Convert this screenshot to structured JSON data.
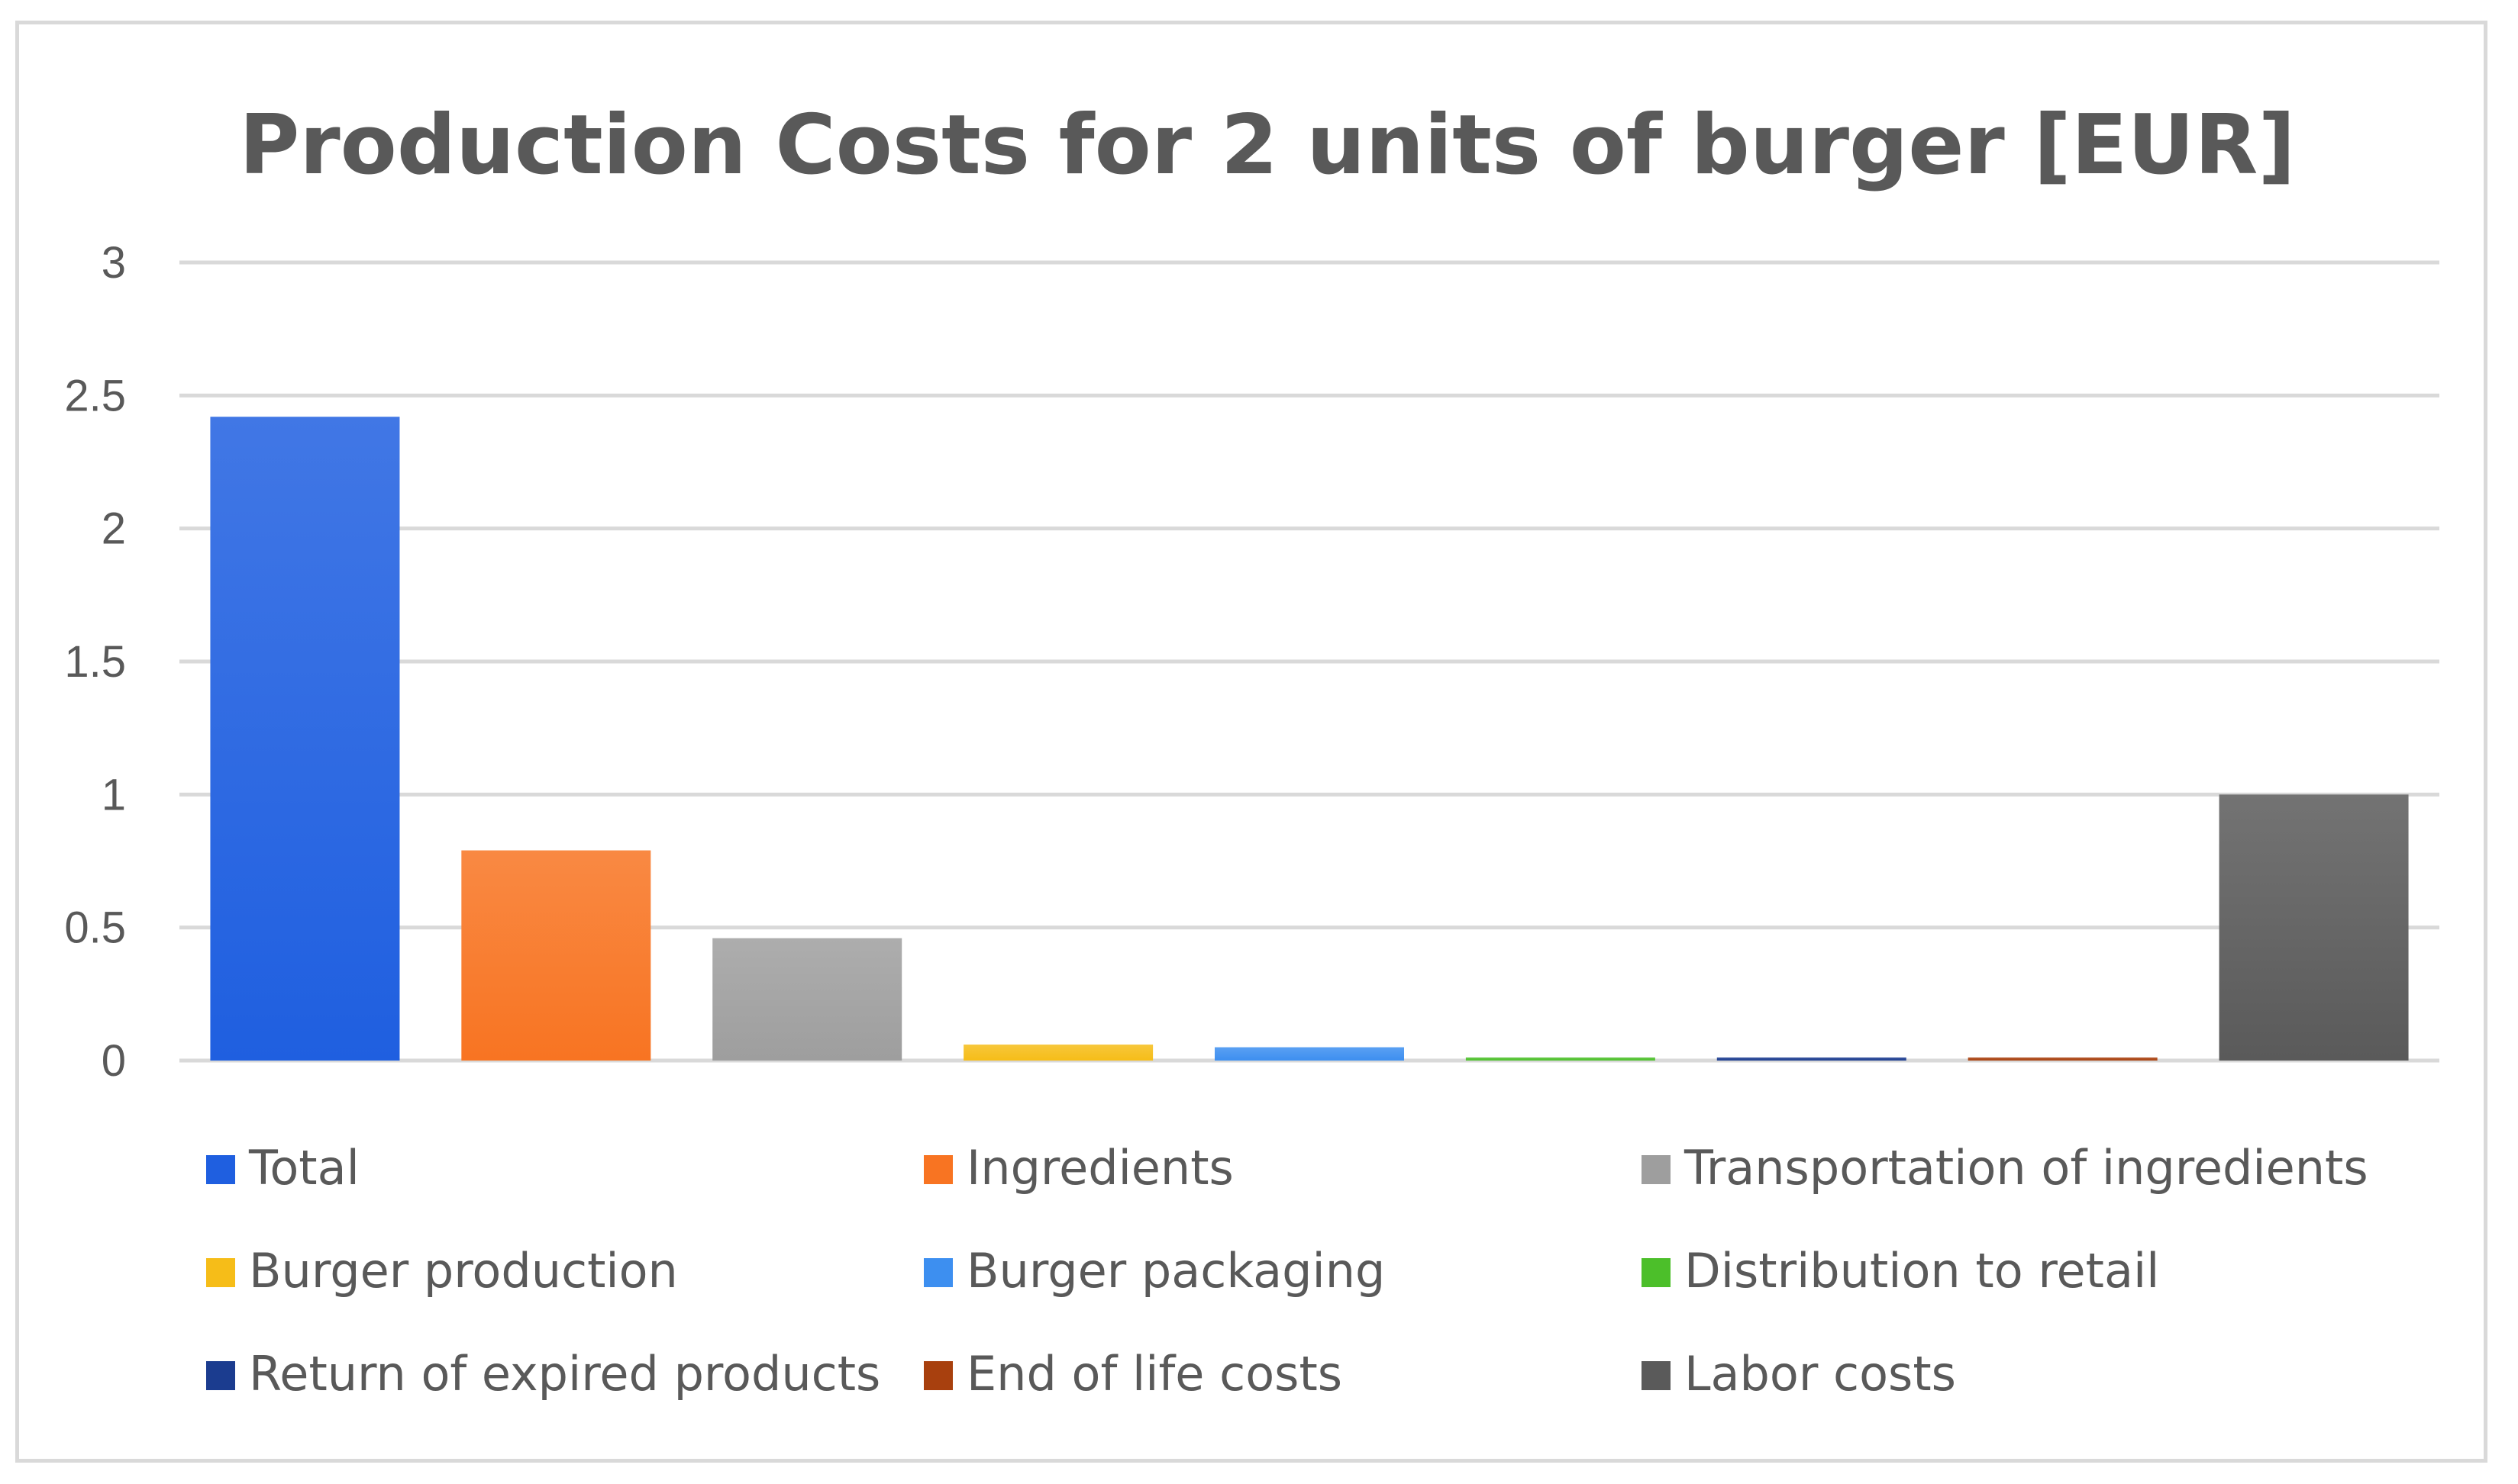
{
  "chart_data": {
    "type": "bar",
    "title": "Production Costs for 2 units of burger [EUR]",
    "xlabel": "",
    "ylabel": "",
    "ylim": [
      0,
      3
    ],
    "yticks": [
      0,
      0.5,
      1,
      1.5,
      2,
      2.5,
      3
    ],
    "ytick_labels": [
      "0",
      "0.5",
      "1",
      "1.5",
      "2",
      "2.5",
      "3"
    ],
    "grid": true,
    "legend_position": "bottom",
    "series": [
      {
        "name": "Total",
        "value": 2.42,
        "color": "#1f5fe0"
      },
      {
        "name": "Ingredients",
        "value": 0.79,
        "color": "#f87422"
      },
      {
        "name": "Transportation of ingredients",
        "value": 0.46,
        "color": "#9e9e9e"
      },
      {
        "name": "Burger production",
        "value": 0.06,
        "color": "#f6bd18"
      },
      {
        "name": "Burger packaging",
        "value": 0.05,
        "color": "#3d8ff0"
      },
      {
        "name": "Distribution to retail",
        "value": 0.01,
        "color": "#4cbf2a"
      },
      {
        "name": "Return of expired products",
        "value": 0.01,
        "color": "#1b3c8f"
      },
      {
        "name": "End of life costs",
        "value": 0.01,
        "color": "#a8400e"
      },
      {
        "name": "Labor costs",
        "value": 1.0,
        "color": "#5a5a5a"
      }
    ]
  }
}
